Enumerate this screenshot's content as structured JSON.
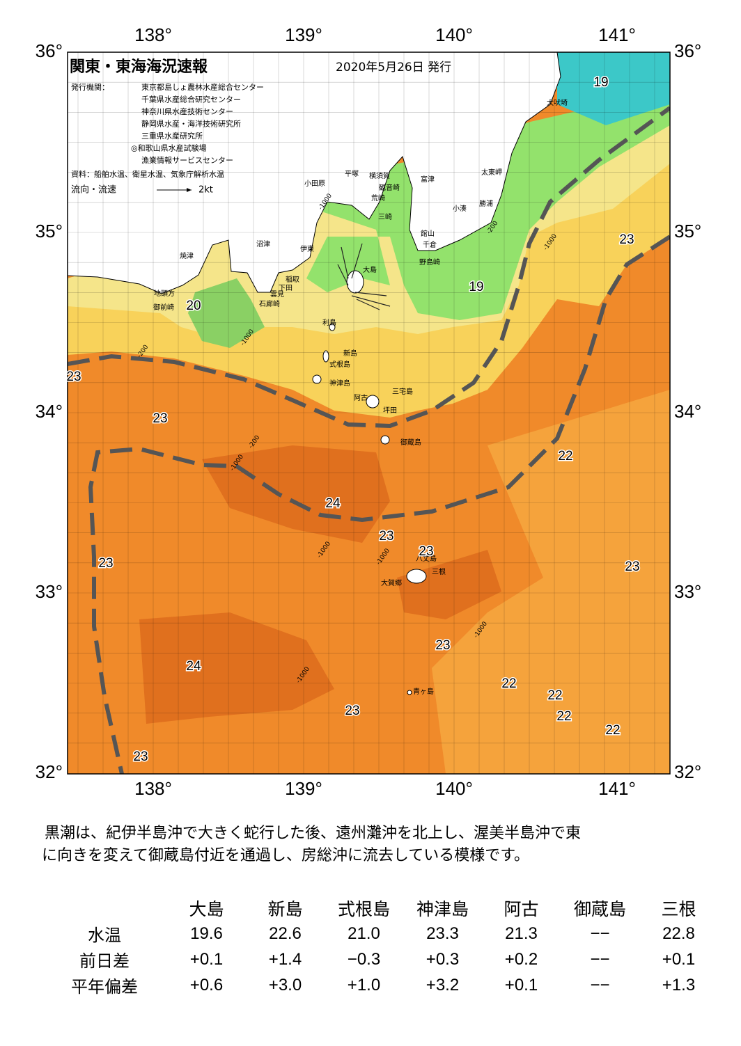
{
  "header": {
    "title": "関東・東海海況速報",
    "date": "2020年5月26日 発行"
  },
  "publishers": {
    "label": "発行機関：",
    "items": [
      "東京都島しょ農林水産総合センター",
      "千葉県水産総合研究センター",
      "神奈川県水産技術センター",
      "静岡県水産・海洋技術研究所",
      "三重県水産研究所",
      "◎和歌山県水産試験場",
      "漁業情報サービスセンター"
    ]
  },
  "source": "資料：船舶水温、衛星水温、気象庁解析水温",
  "legend": {
    "label": "流向・流速",
    "scale": "2kt"
  },
  "axes": {
    "lon": [
      "138°",
      "139°",
      "140°",
      "141°"
    ],
    "lat": [
      "36°",
      "35°",
      "34°",
      "33°",
      "32°"
    ]
  },
  "places": [
    "犬吠埼",
    "太東岬",
    "勝浦",
    "小湊",
    "館山",
    "千倉",
    "野島崎",
    "富津",
    "横須賀",
    "観音崎",
    "荒崎",
    "三崎",
    "平塚",
    "小田原",
    "沼津",
    "伊東",
    "焼津",
    "稲取",
    "下田",
    "雲見",
    "石廊崎",
    "地頭方",
    "御前崎",
    "大島",
    "利島",
    "新島",
    "式根島",
    "神津島",
    "三宅島",
    "阿古",
    "坪田",
    "御蔵島",
    "八丈島",
    "三根",
    "大賀郷",
    "青ヶ島"
  ],
  "isotherms": [
    "19",
    "23",
    "19",
    "20",
    "23",
    "23",
    "22",
    "24",
    "23",
    "23",
    "23",
    "23",
    "23",
    "24",
    "22",
    "22",
    "22",
    "23",
    "22",
    "23"
  ],
  "depth_labels": [
    "-1000",
    "-200",
    "-1000",
    "-200",
    "-1000",
    "-200",
    "-1000",
    "-1000",
    "-1000",
    "-1000",
    "-1000"
  ],
  "summary": [
    "黒潮は、紀伊半島沖で大きく蛇行した後、遠州灘沖を北上し、渥美半島沖で東",
    "に向きを変えて御蔵島付近を通過し、房総沖に流去している模様です。"
  ],
  "table": {
    "columns": [
      "大島",
      "新島",
      "式根島",
      "神津島",
      "阿古",
      "御蔵島",
      "三根"
    ],
    "rows": [
      {
        "label": "水温",
        "values": [
          "19.6",
          "22.6",
          "21.0",
          "23.3",
          "21.3",
          "−−",
          "22.8"
        ]
      },
      {
        "label": "前日差",
        "values": [
          "+0.1",
          "+1.4",
          "−0.3",
          "+0.3",
          "+0.2",
          "−−",
          "+0.1"
        ]
      },
      {
        "label": "平年偏差",
        "values": [
          "+0.6",
          "+3.0",
          "+1.0",
          "+3.2",
          "+0.1",
          "−−",
          "+1.3"
        ]
      }
    ]
  }
}
